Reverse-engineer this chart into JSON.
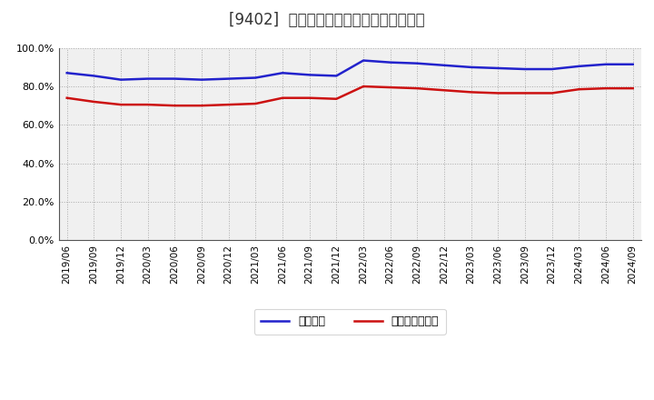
{
  "title": "[9402]  固定比率、固定長期適合率の推移",
  "blue_label": "固定比率",
  "red_label": "固定長期適合率",
  "x_labels": [
    "2019/06",
    "2019/09",
    "2019/12",
    "2020/03",
    "2020/06",
    "2020/09",
    "2020/12",
    "2021/03",
    "2021/06",
    "2021/09",
    "2021/12",
    "2022/03",
    "2022/06",
    "2022/09",
    "2022/12",
    "2023/03",
    "2023/06",
    "2023/09",
    "2023/12",
    "2024/03",
    "2024/06",
    "2024/09"
  ],
  "blue_values": [
    87.0,
    85.5,
    83.5,
    84.0,
    84.0,
    83.5,
    84.0,
    84.5,
    87.0,
    86.0,
    85.5,
    93.5,
    92.5,
    92.0,
    91.0,
    90.0,
    89.5,
    89.0,
    89.0,
    90.5,
    91.5,
    91.5
  ],
  "red_values": [
    74.0,
    72.0,
    70.5,
    70.5,
    70.0,
    70.0,
    70.5,
    71.0,
    74.0,
    74.0,
    73.5,
    80.0,
    79.5,
    79.0,
    78.0,
    77.0,
    76.5,
    76.5,
    76.5,
    78.5,
    79.0,
    79.0
  ],
  "ylim": [
    0.0,
    100.0
  ],
  "yticks": [
    0.0,
    20.0,
    40.0,
    60.0,
    80.0,
    100.0
  ],
  "blue_color": "#2222cc",
  "red_color": "#cc1111",
  "bg_color": "#ffffff",
  "plot_bg_color": "#f0f0f0",
  "title_fontsize": 12,
  "legend_fontsize": 9,
  "tick_fontsize": 7.5,
  "ytick_fontsize": 8
}
